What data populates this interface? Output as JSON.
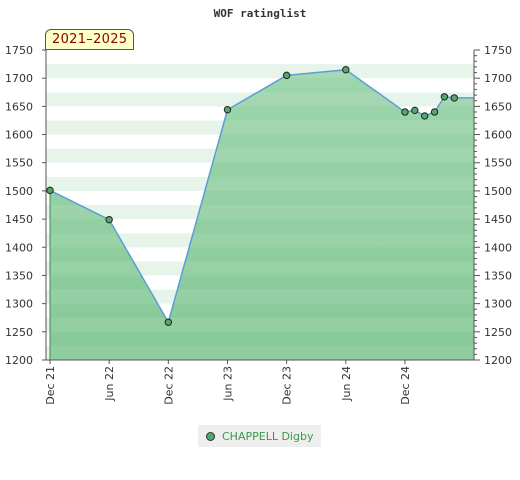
{
  "chart_data": {
    "type": "area",
    "title": "WOF ratinglist",
    "badge": "2021–2025",
    "ylim": [
      1200,
      1750
    ],
    "y_ticks": [
      1200,
      1250,
      1300,
      1350,
      1400,
      1450,
      1500,
      1550,
      1600,
      1650,
      1700,
      1750
    ],
    "x_ticks": [
      "Dec 21",
      "Jun 22",
      "Dec 22",
      "Jun 23",
      "Dec 23",
      "Jun 24",
      "Dec 24"
    ],
    "x_tick_months": [
      0,
      6,
      12,
      18,
      24,
      30,
      36
    ],
    "xlim_months": [
      0,
      43
    ],
    "series": [
      {
        "name": "CHAPPELL Digby",
        "x_months": [
          0,
          6,
          12,
          18,
          24,
          30,
          36,
          37,
          38,
          39,
          40,
          41
        ],
        "values": [
          1501,
          1449,
          1267,
          1644,
          1705,
          1715,
          1640,
          1643,
          1633,
          1640,
          1667,
          1665
        ]
      }
    ],
    "colors": {
      "fill": "#7cc48e",
      "line": "#5a9ed6",
      "point": "#54a86a",
      "band_light": "#e6f4ea",
      "band_mid": "#a8d8b5"
    },
    "legend_position": "bottom-center",
    "grid": true
  }
}
